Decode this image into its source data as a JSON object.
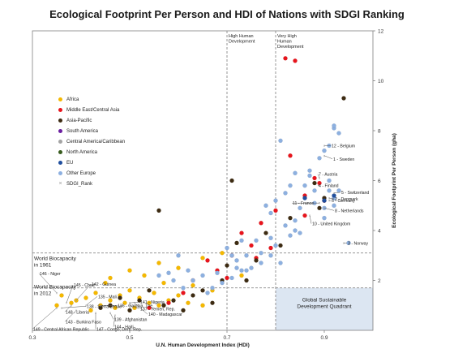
{
  "chart_data": {
    "type": "scatter",
    "title": "Ecological Footprint Per Person and HDI of Nations with SDGI Ranking",
    "xlabel": "U.N. Human Development Index (HDI)",
    "ylabel": "Ecological Footprint Per Person (gha)",
    "xlim": [
      0.3,
      1.0
    ],
    "ylim": [
      0,
      12
    ],
    "x_ticks": [
      "0.3",
      "0.5",
      "0.7",
      "0.9"
    ],
    "y_ticks": [
      "2",
      "4",
      "6",
      "8",
      "10",
      "12"
    ],
    "grid": false,
    "legend_position": "left",
    "colors": {
      "Africa": "#f5b800",
      "Middle East/Central Asia": "#e8141c",
      "Asia-Pacific": "#3d2b12",
      "South America": "#6b1fa0",
      "Central America/Caribbean": "#a3a3a3",
      "North America": "#385c1e",
      "EU": "#1f4e9e",
      "Other Europe": "#8db0e0",
      "SDGI_Rank": "#999999"
    },
    "legend": [
      "Africa",
      "Middle East/Central Asia",
      "Asia-Pacific",
      "South America",
      "Central America/Caribbean",
      "North America",
      "EU",
      "Other Europe",
      "SDGI_Rank"
    ],
    "threshold_labels": {
      "high": "High Human Development",
      "very_high": "Very High Human Development",
      "biocap_1961": "World Biocapacity in 1961",
      "biocap_2012": "World Biocapacity in 2012",
      "quadrant": "Global Sustainable Development Quadrant"
    },
    "thresholds": {
      "high_hdi": 0.7,
      "very_high_hdi": 0.8,
      "biocap_1961": 3.1,
      "biocap_2012": 1.7
    },
    "series": [
      {
        "name": "Africa",
        "points": [
          [
            0.35,
            1.0
          ],
          [
            0.36,
            1.4
          ],
          [
            0.38,
            1.1
          ],
          [
            0.39,
            1.2
          ],
          [
            0.41,
            1.3
          ],
          [
            0.42,
            0.8
          ],
          [
            0.43,
            1.5
          ],
          [
            0.44,
            1.0
          ],
          [
            0.45,
            1.9
          ],
          [
            0.46,
            1.2
          ],
          [
            0.47,
            0.9
          ],
          [
            0.48,
            1.4
          ],
          [
            0.49,
            1.1
          ],
          [
            0.5,
            1.6
          ],
          [
            0.51,
            0.9
          ],
          [
            0.52,
            1.3
          ],
          [
            0.53,
            2.2
          ],
          [
            0.54,
            1.1
          ],
          [
            0.55,
            1.5
          ],
          [
            0.56,
            1.0
          ],
          [
            0.57,
            1.9
          ],
          [
            0.58,
            1.2
          ],
          [
            0.6,
            1.4
          ],
          [
            0.62,
            1.1
          ],
          [
            0.63,
            1.8
          ],
          [
            0.65,
            1.0
          ],
          [
            0.67,
            1.6
          ],
          [
            0.5,
            2.4
          ],
          [
            0.46,
            2.1
          ],
          [
            0.56,
            2.7
          ],
          [
            0.6,
            2.5
          ],
          [
            0.65,
            2.9
          ],
          [
            0.69,
            3.1
          ],
          [
            0.73,
            2.2
          ]
        ]
      },
      {
        "name": "Middle East/Central Asia",
        "points": [
          [
            0.82,
            10.9
          ],
          [
            0.84,
            10.8
          ],
          [
            0.83,
            7.0
          ],
          [
            0.88,
            6.1
          ],
          [
            0.89,
            5.9
          ],
          [
            0.86,
            5.4
          ],
          [
            0.8,
            4.8
          ],
          [
            0.77,
            4.3
          ],
          [
            0.73,
            3.9
          ],
          [
            0.75,
            3.4
          ],
          [
            0.71,
            3.0
          ],
          [
            0.66,
            2.8
          ],
          [
            0.63,
            2.0
          ],
          [
            0.61,
            1.5
          ],
          [
            0.58,
            1.1
          ],
          [
            0.7,
            2.1
          ],
          [
            0.76,
            2.9
          ],
          [
            0.79,
            3.3
          ],
          [
            0.9,
            5.2
          ],
          [
            0.68,
            2.4
          ],
          [
            0.54,
            0.9
          ],
          [
            0.86,
            4.6
          ]
        ]
      },
      {
        "name": "Asia-Pacific",
        "points": [
          [
            0.56,
            4.8
          ],
          [
            0.71,
            6.0
          ],
          [
            0.94,
            9.3
          ],
          [
            0.44,
            0.9
          ],
          [
            0.46,
            1.0
          ],
          [
            0.48,
            1.3
          ],
          [
            0.5,
            0.8
          ],
          [
            0.52,
            1.2
          ],
          [
            0.54,
            1.6
          ],
          [
            0.57,
            1.0
          ],
          [
            0.59,
            1.2
          ],
          [
            0.61,
            0.8
          ],
          [
            0.63,
            1.4
          ],
          [
            0.65,
            1.6
          ],
          [
            0.67,
            1.1
          ],
          [
            0.69,
            2.0
          ],
          [
            0.7,
            2.6
          ],
          [
            0.72,
            3.5
          ],
          [
            0.74,
            2.0
          ],
          [
            0.76,
            2.8
          ],
          [
            0.78,
            3.9
          ],
          [
            0.88,
            5.9
          ],
          [
            0.89,
            4.9
          ],
          [
            0.9,
            5.3
          ],
          [
            0.81,
            3.4
          ],
          [
            0.83,
            4.5
          ]
        ]
      },
      {
        "name": "Other Europe",
        "points": [
          [
            0.9,
            7.2
          ],
          [
            0.91,
            7.4
          ],
          [
            0.92,
            8.1
          ],
          [
            0.92,
            8.2
          ],
          [
            0.93,
            7.9
          ],
          [
            0.89,
            6.9
          ],
          [
            0.87,
            6.4
          ],
          [
            0.91,
            5.6
          ],
          [
            0.92,
            5.3
          ],
          [
            0.92,
            5.0
          ],
          [
            0.9,
            4.9
          ],
          [
            0.86,
            5.8
          ],
          [
            0.88,
            5.6
          ],
          [
            0.87,
            6.2
          ],
          [
            0.85,
            4.9
          ],
          [
            0.84,
            4.4
          ],
          [
            0.82,
            4.2
          ],
          [
            0.8,
            3.4
          ],
          [
            0.79,
            3.0
          ],
          [
            0.77,
            2.7
          ],
          [
            0.75,
            2.5
          ],
          [
            0.74,
            3.0
          ],
          [
            0.73,
            2.4
          ],
          [
            0.72,
            2.8
          ],
          [
            0.71,
            3.0
          ],
          [
            0.71,
            2.1
          ],
          [
            0.7,
            3.3
          ],
          [
            0.69,
            1.9
          ],
          [
            0.68,
            2.3
          ],
          [
            0.67,
            1.7
          ],
          [
            0.66,
            1.5
          ],
          [
            0.65,
            2.2
          ],
          [
            0.63,
            2.0
          ],
          [
            0.62,
            2.4
          ],
          [
            0.61,
            1.7
          ],
          [
            0.6,
            3.0
          ],
          [
            0.59,
            2.0
          ],
          [
            0.58,
            2.3
          ],
          [
            0.56,
            2.2
          ],
          [
            0.81,
            7.6
          ],
          [
            0.8,
            5.2
          ],
          [
            0.78,
            5.0
          ],
          [
            0.79,
            4.7
          ],
          [
            0.83,
            5.8
          ],
          [
            0.84,
            6.3
          ],
          [
            0.76,
            3.6
          ],
          [
            0.77,
            3.1
          ],
          [
            0.72,
            2.5
          ],
          [
            0.74,
            2.4
          ],
          [
            0.73,
            3.6
          ],
          [
            0.85,
            3.9
          ],
          [
            0.84,
            4.0
          ],
          [
            0.83,
            3.8
          ],
          [
            0.95,
            3.5
          ],
          [
            0.93,
            5.6
          ],
          [
            0.91,
            6.0
          ],
          [
            0.9,
            4.5
          ],
          [
            0.88,
            5.1
          ],
          [
            0.82,
            5.5
          ],
          [
            0.81,
            2.7
          ],
          [
            0.79,
            3.7
          ]
        ]
      },
      {
        "name": "EU",
        "points": [
          [
            0.9,
            5.2
          ],
          [
            0.92,
            5.4
          ],
          [
            0.86,
            5.3
          ]
        ]
      }
    ],
    "labeled_points": [
      {
        "label": "12 - Belgium",
        "x": 0.9,
        "y": 7.4
      },
      {
        "label": "1 - Sweden",
        "x": 0.9,
        "y": 7.0
      },
      {
        "label": "7 - Austria",
        "x": 0.89,
        "y": 6.1
      },
      {
        "label": "4 - Finland",
        "x": 0.89,
        "y": 5.8
      },
      {
        "label": "5 - Switzerland",
        "x": 0.92,
        "y": 5.5
      },
      {
        "label": "2 - Denmark",
        "x": 0.91,
        "y": 5.3
      },
      {
        "label": "11 - France",
        "x": 0.89,
        "y": 5.1
      },
      {
        "label": "6 - Germany",
        "x": 0.91,
        "y": 5.2
      },
      {
        "label": "8 - Netherlands",
        "x": 0.9,
        "y": 4.9
      },
      {
        "label": "10 - United Kingdom",
        "x": 0.87,
        "y": 4.6
      },
      {
        "label": "3 - Norway",
        "x": 0.94,
        "y": 3.5
      },
      {
        "label": "146 - Niger",
        "x": 0.35,
        "y": 1.5
      },
      {
        "label": "145 - Chad",
        "x": 0.37,
        "y": 1.1
      },
      {
        "label": "142 - Guinea",
        "x": 0.39,
        "y": 1.2
      },
      {
        "label": "135 - Mali",
        "x": 0.41,
        "y": 1.0
      },
      {
        "label": "138 - Sierra Leone",
        "x": 0.36,
        "y": 0.9
      },
      {
        "label": "136 - Gambia, The",
        "x": 0.44,
        "y": 1.0
      },
      {
        "label": "141 - Nigeria",
        "x": 0.5,
        "y": 1.1
      },
      {
        "label": "137 - Yemen, Rep.",
        "x": 0.5,
        "y": 1.0
      },
      {
        "label": "148 - Liberia",
        "x": 0.38,
        "y": 1.0
      },
      {
        "label": "139 - Afghanistan",
        "x": 0.46,
        "y": 0.7
      },
      {
        "label": "143 - Burkina Faso",
        "x": 0.39,
        "y": 0.8
      },
      {
        "label": "144 - Haiti",
        "x": 0.47,
        "y": 0.6
      },
      {
        "label": "140 - Madagascar",
        "x": 0.51,
        "y": 1.1
      },
      {
        "label": "147 - Congo, Dem. Rep.",
        "x": 0.43,
        "y": 0.7
      },
      {
        "label": "149 - Central African Republic",
        "x": 0.35,
        "y": 0.9
      }
    ]
  }
}
